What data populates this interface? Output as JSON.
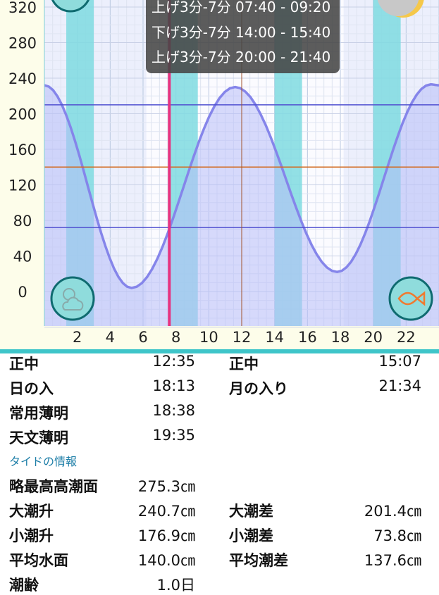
{
  "chart_data": {
    "type": "area",
    "x_ticks": [
      "2",
      "4",
      "6",
      "8",
      "10",
      "12",
      "14",
      "16",
      "18",
      "20",
      "22"
    ],
    "y_ticks": [
      "0",
      "40",
      "80",
      "120",
      "160",
      "200",
      "240",
      "280",
      "320"
    ],
    "xlim": [
      0,
      24
    ],
    "ylim": [
      -40,
      330
    ],
    "tide_points": [
      [
        0,
        232
      ],
      [
        5.3,
        4
      ],
      [
        11.6,
        230
      ],
      [
        17.8,
        22
      ],
      [
        23.5,
        233
      ],
      [
        24,
        232
      ]
    ],
    "reference_lines": [
      {
        "value": 210,
        "color": "#5050d0"
      },
      {
        "value": 140,
        "color": "#d2691e"
      },
      {
        "value": 72,
        "color": "#5050d0"
      }
    ],
    "fishing_bands": [
      [
        1.33,
        3.0
      ],
      [
        7.67,
        9.33
      ],
      [
        14.0,
        15.67
      ],
      [
        20.0,
        21.67
      ]
    ],
    "current_time_hour": 7.6,
    "noon_line_hour": 12.0,
    "daylight": [
      6.2,
      18.2
    ],
    "colors": {
      "curve": "#8585ea",
      "fill": "#b8bdf7",
      "band": "#7fdbe0",
      "current": "#e8327f",
      "axis_bg": "#fdfdea"
    }
  },
  "tooltip": {
    "rows": [
      "上げ3分-7分 07:40 - 09:20",
      "下げ3分-7分 14:00 - 15:40",
      "上げ3分-7分 20:00 - 21:40"
    ]
  },
  "icons": {
    "weather": "sun-cloud-icon",
    "fish": "fish-icon",
    "moon": "moon-phase-icon"
  },
  "sun_moon": [
    {
      "l1": "正中",
      "v1": "12:35",
      "l2": "正中",
      "v2": "15:07"
    },
    {
      "l1": "日の入",
      "v1": "18:13",
      "l2": "月の入り",
      "v2": "21:34"
    },
    {
      "l1": "常用薄明",
      "v1": "18:38",
      "l2": "",
      "v2": ""
    },
    {
      "l1": "天文薄明",
      "v1": "19:35",
      "l2": "",
      "v2": ""
    }
  ],
  "tide_section_title": "タイドの情報",
  "tide_info": [
    {
      "l1": "略最高高潮面",
      "v1": "275.3㎝",
      "l2": "",
      "v2": ""
    },
    {
      "l1": "大潮升",
      "v1": "240.7㎝",
      "l2": "大潮差",
      "v2": "201.4㎝"
    },
    {
      "l1": "小潮升",
      "v1": "176.9㎝",
      "l2": "小潮差",
      "v2": "73.8㎝"
    },
    {
      "l1": "平均水面",
      "v1": "140.0㎝",
      "l2": "平均潮差",
      "v2": "137.6㎝"
    },
    {
      "l1": "潮齢",
      "v1": "1.0日",
      "l2": "",
      "v2": ""
    }
  ]
}
